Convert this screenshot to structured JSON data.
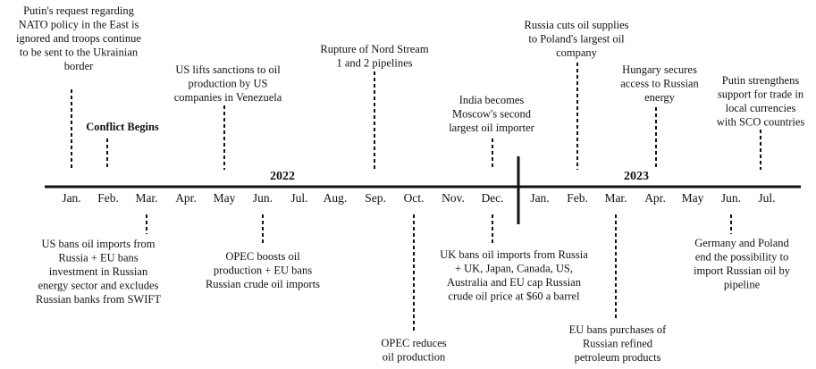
{
  "years": [
    "2022",
    "2023"
  ],
  "months": [
    "Jan.",
    "Feb.",
    "Mar.",
    "Apr.",
    "May",
    "Jun.",
    "Jul.",
    "Aug.",
    "Sep.",
    "Oct.",
    "Nov.",
    "Dec.",
    "Jan.",
    "Feb.",
    "Mar.",
    "Apr.",
    "May",
    "Jun.",
    "Jul."
  ],
  "events_above": [
    {
      "lines": [
        "Putin's request regarding",
        "NATO policy in the East is",
        "ignored and troops continue",
        "to be sent to the Ukrainian",
        "border"
      ]
    },
    {
      "lines": [
        "Conflict Begins"
      ]
    },
    {
      "lines": [
        "US lifts  sanctions to oil",
        "production by US",
        "companies in Venezuela"
      ]
    },
    {
      "lines": [
        "Rupture of Nord Stream",
        "1 and 2 pipelines"
      ]
    },
    {
      "lines": [
        "India becomes",
        "Moscow's second",
        "largest oil importer"
      ]
    },
    {
      "lines": [
        "Russia cuts oil supplies",
        "to Poland's largest oil",
        "company"
      ]
    },
    {
      "lines": [
        "Hungary secures",
        "access to Russian",
        "energy"
      ]
    },
    {
      "lines": [
        "Putin strengthens",
        "support for trade in",
        "local currencies",
        "with SCO countries"
      ]
    }
  ],
  "events_below": [
    {
      "lines": [
        "US bans oil imports from",
        "Russia + EU bans",
        "investment in Russian",
        "energy sector and excludes",
        "Russian banks from SWIFT"
      ]
    },
    {
      "lines": [
        "OPEC boosts oil",
        "production + EU bans",
        "Russian crude oil imports"
      ]
    },
    {
      "lines": [
        "OPEC reduces",
        "oil production"
      ]
    },
    {
      "lines": [
        "UK bans oil imports from Russia",
        "+ UK, Japan, Canada, US,",
        "Australia  and EU cap Russian",
        "crude oil price at $60 a barrel"
      ]
    },
    {
      "lines": [
        "EU bans purchases of",
        "Russian refined",
        "petroleum products"
      ]
    },
    {
      "lines": [
        "Germany and Poland",
        "end the possibility to",
        "import Russian oil by",
        "pipeline"
      ]
    }
  ]
}
